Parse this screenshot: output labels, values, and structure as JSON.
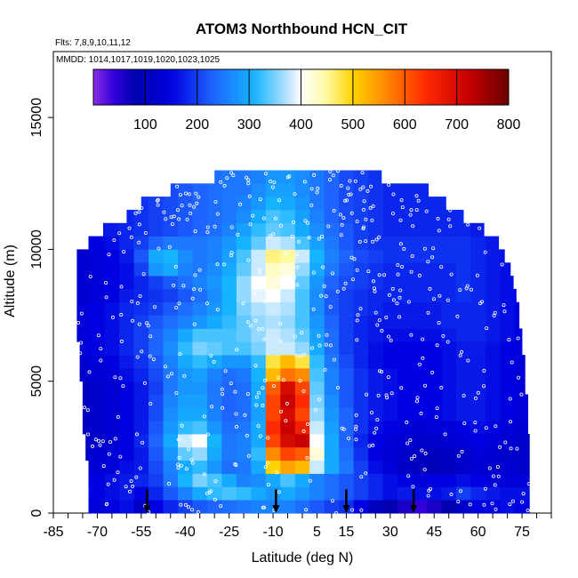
{
  "chart_data": {
    "type": "heatmap",
    "title": "ATOM3 Northbound HCN_CIT",
    "subtitle_flights": "Flts: 7,8,9,10,11,12",
    "subtitle_dates": "MMDD: 1014,1017,1019,1020,1023,1025",
    "xlabel": "Latitude (deg N)",
    "ylabel": "Altitude (m)",
    "xlim": [
      -85,
      85
    ],
    "ylim": [
      0,
      17500
    ],
    "x_ticks": [
      "-85",
      "-70",
      "-55",
      "-40",
      "-25",
      "-10",
      "5",
      "15",
      "30",
      "45",
      "60",
      "75"
    ],
    "x_tick_values": [
      -85,
      -70,
      -55,
      -40,
      -25,
      -10,
      5,
      15,
      30,
      45,
      60,
      75
    ],
    "y_ticks": [
      "0",
      "5000",
      "10000",
      "15000"
    ],
    "y_tick_values": [
      0,
      5000,
      10000,
      15000
    ],
    "colorbar": {
      "range": [
        0,
        800
      ],
      "tick_labels": [
        "100",
        "200",
        "300",
        "400",
        "500",
        "600",
        "700",
        "800"
      ],
      "tick_values": [
        100,
        200,
        300,
        400,
        500,
        600,
        700,
        800
      ]
    },
    "colormap": [
      [
        0,
        "#8a2be2"
      ],
      [
        40,
        "#3300dd"
      ],
      [
        80,
        "#0000b0"
      ],
      [
        150,
        "#0000e0"
      ],
      [
        230,
        "#1e64ff"
      ],
      [
        310,
        "#14b4ff"
      ],
      [
        370,
        "#aee0ff"
      ],
      [
        400,
        "#ffffff"
      ],
      [
        450,
        "#fffaa0"
      ],
      [
        500,
        "#ffd300"
      ],
      [
        560,
        "#ff8c00"
      ],
      [
        640,
        "#ff2a00"
      ],
      [
        720,
        "#c80000"
      ],
      [
        800,
        "#6a0000"
      ]
    ],
    "grid": false,
    "legend": "colorbar-top",
    "altitude_bins_m": [
      250,
      750,
      1250,
      1750,
      2250,
      2750,
      3250,
      3750,
      4250,
      4750,
      5250,
      5750,
      6250,
      6750,
      7250,
      7750,
      8250,
      8750,
      9250,
      9750,
      10250,
      10750,
      11250,
      11750,
      12250,
      12750
    ],
    "latitude_bins_deg": [
      -75,
      -70,
      -65,
      -60,
      -55,
      -50,
      -45,
      -40,
      -35,
      -30,
      -25,
      -20,
      -15,
      -10,
      -5,
      0,
      5,
      10,
      15,
      20,
      25,
      30,
      35,
      40,
      45,
      50,
      55,
      60,
      65,
      70,
      75
    ],
    "hcn_values": [
      [
        150,
        140,
        150,
        160,
        110,
        150,
        180,
        200,
        220,
        230,
        240,
        250,
        260,
        260,
        260,
        240,
        220,
        200,
        190,
        150,
        100,
        80,
        60,
        40,
        60,
        80,
        120,
        150,
        150,
        160,
        150
      ],
      [
        160,
        150,
        160,
        170,
        150,
        180,
        220,
        260,
        300,
        320,
        330,
        320,
        300,
        280,
        300,
        280,
        260,
        240,
        220,
        200,
        180,
        160,
        170,
        160,
        160,
        170,
        200,
        180,
        170,
        160,
        160
      ],
      [
        140,
        150,
        160,
        170,
        180,
        200,
        250,
        310,
        350,
        330,
        300,
        260,
        270,
        300,
        330,
        300,
        260,
        240,
        220,
        200,
        180,
        160,
        150,
        140,
        150,
        150,
        160,
        150,
        140,
        140,
        140
      ],
      [
        120,
        130,
        140,
        160,
        170,
        210,
        260,
        300,
        320,
        280,
        240,
        250,
        300,
        500,
        540,
        520,
        380,
        300,
        250,
        200,
        160,
        140,
        110,
        100,
        90,
        100,
        120,
        130,
        120,
        130,
        120
      ],
      [
        120,
        130,
        140,
        150,
        170,
        220,
        280,
        340,
        360,
        300,
        250,
        260,
        320,
        560,
        620,
        600,
        420,
        300,
        240,
        190,
        150,
        130,
        120,
        110,
        100,
        110,
        120,
        140,
        130,
        120,
        120
      ],
      [
        110,
        120,
        130,
        150,
        180,
        230,
        300,
        380,
        400,
        310,
        250,
        260,
        300,
        620,
        700,
        720,
        400,
        300,
        230,
        180,
        150,
        140,
        130,
        120,
        120,
        130,
        140,
        150,
        140,
        130,
        120
      ],
      [
        110,
        120,
        130,
        150,
        170,
        220,
        280,
        320,
        330,
        280,
        240,
        250,
        300,
        640,
        720,
        660,
        380,
        290,
        230,
        190,
        160,
        150,
        140,
        130,
        140,
        140,
        150,
        160,
        150,
        140,
        130
      ],
      [
        110,
        120,
        130,
        150,
        170,
        210,
        270,
        300,
        300,
        260,
        230,
        240,
        290,
        620,
        700,
        620,
        360,
        280,
        230,
        190,
        170,
        160,
        150,
        150,
        150,
        160,
        170,
        170,
        160,
        150,
        140
      ],
      [
        110,
        120,
        130,
        150,
        170,
        210,
        260,
        290,
        290,
        250,
        230,
        240,
        300,
        620,
        720,
        640,
        350,
        270,
        220,
        190,
        170,
        160,
        150,
        150,
        150,
        160,
        170,
        170,
        160,
        150,
        140
      ],
      [
        110,
        120,
        130,
        150,
        170,
        200,
        250,
        280,
        280,
        250,
        230,
        240,
        300,
        600,
        700,
        620,
        340,
        260,
        220,
        190,
        170,
        160,
        150,
        150,
        150,
        160,
        170,
        170,
        160,
        150,
        140
      ],
      [
        120,
        130,
        140,
        160,
        180,
        210,
        250,
        280,
        290,
        260,
        240,
        250,
        310,
        520,
        580,
        560,
        330,
        260,
        220,
        190,
        170,
        160,
        150,
        150,
        150,
        160,
        170,
        170,
        160,
        150,
        140
      ],
      [
        130,
        140,
        150,
        170,
        190,
        220,
        260,
        300,
        320,
        300,
        280,
        280,
        320,
        480,
        520,
        480,
        320,
        250,
        210,
        180,
        160,
        150,
        150,
        150,
        150,
        160,
        170,
        170,
        160,
        150,
        140
      ],
      [
        140,
        150,
        160,
        180,
        200,
        230,
        270,
        320,
        350,
        340,
        330,
        330,
        350,
        380,
        380,
        360,
        300,
        240,
        200,
        180,
        160,
        150,
        150,
        150,
        150,
        160,
        170,
        170,
        160,
        150,
        140
      ],
      [
        140,
        150,
        160,
        180,
        200,
        230,
        260,
        300,
        330,
        330,
        330,
        340,
        360,
        380,
        370,
        340,
        290,
        240,
        200,
        180,
        170,
        160,
        160,
        160,
        160,
        170,
        180,
        180,
        170,
        160,
        150
      ],
      [
        140,
        150,
        160,
        180,
        200,
        220,
        240,
        260,
        280,
        300,
        320,
        340,
        360,
        370,
        360,
        330,
        280,
        230,
        200,
        180,
        170,
        170,
        170,
        170,
        170,
        180,
        180,
        180,
        170,
        160,
        150
      ],
      [
        140,
        150,
        160,
        180,
        190,
        200,
        220,
        240,
        260,
        280,
        310,
        350,
        370,
        380,
        370,
        330,
        270,
        220,
        200,
        190,
        180,
        170,
        170,
        170,
        170,
        180,
        180,
        180,
        170,
        160,
        150
      ],
      [
        130,
        140,
        150,
        170,
        180,
        190,
        200,
        220,
        240,
        270,
        310,
        360,
        390,
        400,
        380,
        330,
        270,
        220,
        200,
        190,
        180,
        180,
        180,
        180,
        180,
        180,
        190,
        180,
        170,
        160,
        150
      ],
      [
        130,
        140,
        150,
        160,
        180,
        200,
        220,
        240,
        260,
        280,
        310,
        360,
        400,
        420,
        400,
        340,
        280,
        230,
        210,
        200,
        190,
        180,
        180,
        180,
        180,
        180,
        190,
        180,
        170,
        160,
        150
      ],
      [
        130,
        140,
        150,
        160,
        200,
        280,
        300,
        260,
        250,
        270,
        300,
        340,
        380,
        430,
        420,
        360,
        300,
        250,
        220,
        200,
        190,
        180,
        180,
        180,
        180,
        180,
        190,
        180,
        170,
        160,
        150
      ],
      [
        130,
        140,
        150,
        170,
        220,
        300,
        310,
        270,
        250,
        260,
        290,
        330,
        380,
        460,
        450,
        380,
        310,
        260,
        230,
        210,
        200,
        190,
        190,
        190,
        190,
        190,
        190,
        180,
        170,
        160,
        150
      ],
      [
        140,
        150,
        160,
        180,
        200,
        230,
        250,
        250,
        250,
        260,
        280,
        310,
        340,
        380,
        370,
        330,
        290,
        250,
        220,
        200,
        190,
        190,
        190,
        190,
        190,
        190,
        190,
        180,
        170,
        160,
        150
      ],
      [
        150,
        160,
        170,
        180,
        190,
        200,
        210,
        220,
        230,
        240,
        260,
        290,
        320,
        340,
        330,
        300,
        270,
        240,
        220,
        200,
        190,
        180,
        180,
        180,
        180,
        180,
        180,
        170,
        160,
        150,
        150
      ],
      [
        150,
        160,
        170,
        180,
        190,
        200,
        210,
        220,
        230,
        240,
        250,
        270,
        300,
        330,
        320,
        290,
        260,
        230,
        210,
        200,
        190,
        180,
        180,
        180,
        180,
        180,
        180,
        170,
        160,
        150,
        150
      ],
      [
        150,
        160,
        170,
        180,
        190,
        200,
        210,
        220,
        230,
        240,
        250,
        260,
        280,
        310,
        300,
        280,
        250,
        230,
        210,
        200,
        190,
        180,
        180,
        180,
        180,
        180,
        180,
        170,
        160,
        150,
        150
      ],
      [
        150,
        160,
        170,
        180,
        190,
        200,
        210,
        220,
        230,
        240,
        250,
        250,
        270,
        290,
        290,
        270,
        250,
        230,
        210,
        200,
        190,
        180,
        180,
        180,
        180,
        180,
        180,
        170,
        160,
        150,
        150
      ],
      [
        150,
        160,
        170,
        180,
        190,
        200,
        210,
        220,
        230,
        240,
        250,
        250,
        260,
        280,
        280,
        270,
        250,
        230,
        210,
        200,
        190,
        180,
        180,
        180,
        180,
        180,
        180,
        170,
        160,
        150,
        150
      ]
    ],
    "coverage": {
      "lat_min_by_alt_bin": [
        -73,
        -73,
        -73,
        -73,
        -74,
        -74,
        -75,
        -75,
        -75,
        -75,
        -76,
        -76,
        -76,
        -77,
        -77,
        -77,
        -77,
        -77,
        -77,
        -77,
        -73,
        -68,
        -60,
        -55,
        -45,
        -30
      ],
      "lat_max_by_alt_bin": [
        78,
        78,
        78,
        78,
        78,
        78,
        77,
        77,
        77,
        76,
        76,
        76,
        75,
        75,
        74,
        74,
        73,
        72,
        71,
        69,
        67,
        62,
        55,
        49,
        43,
        27
      ]
    },
    "arrow_latitudes": [
      -53,
      -9,
      15,
      38
    ]
  }
}
